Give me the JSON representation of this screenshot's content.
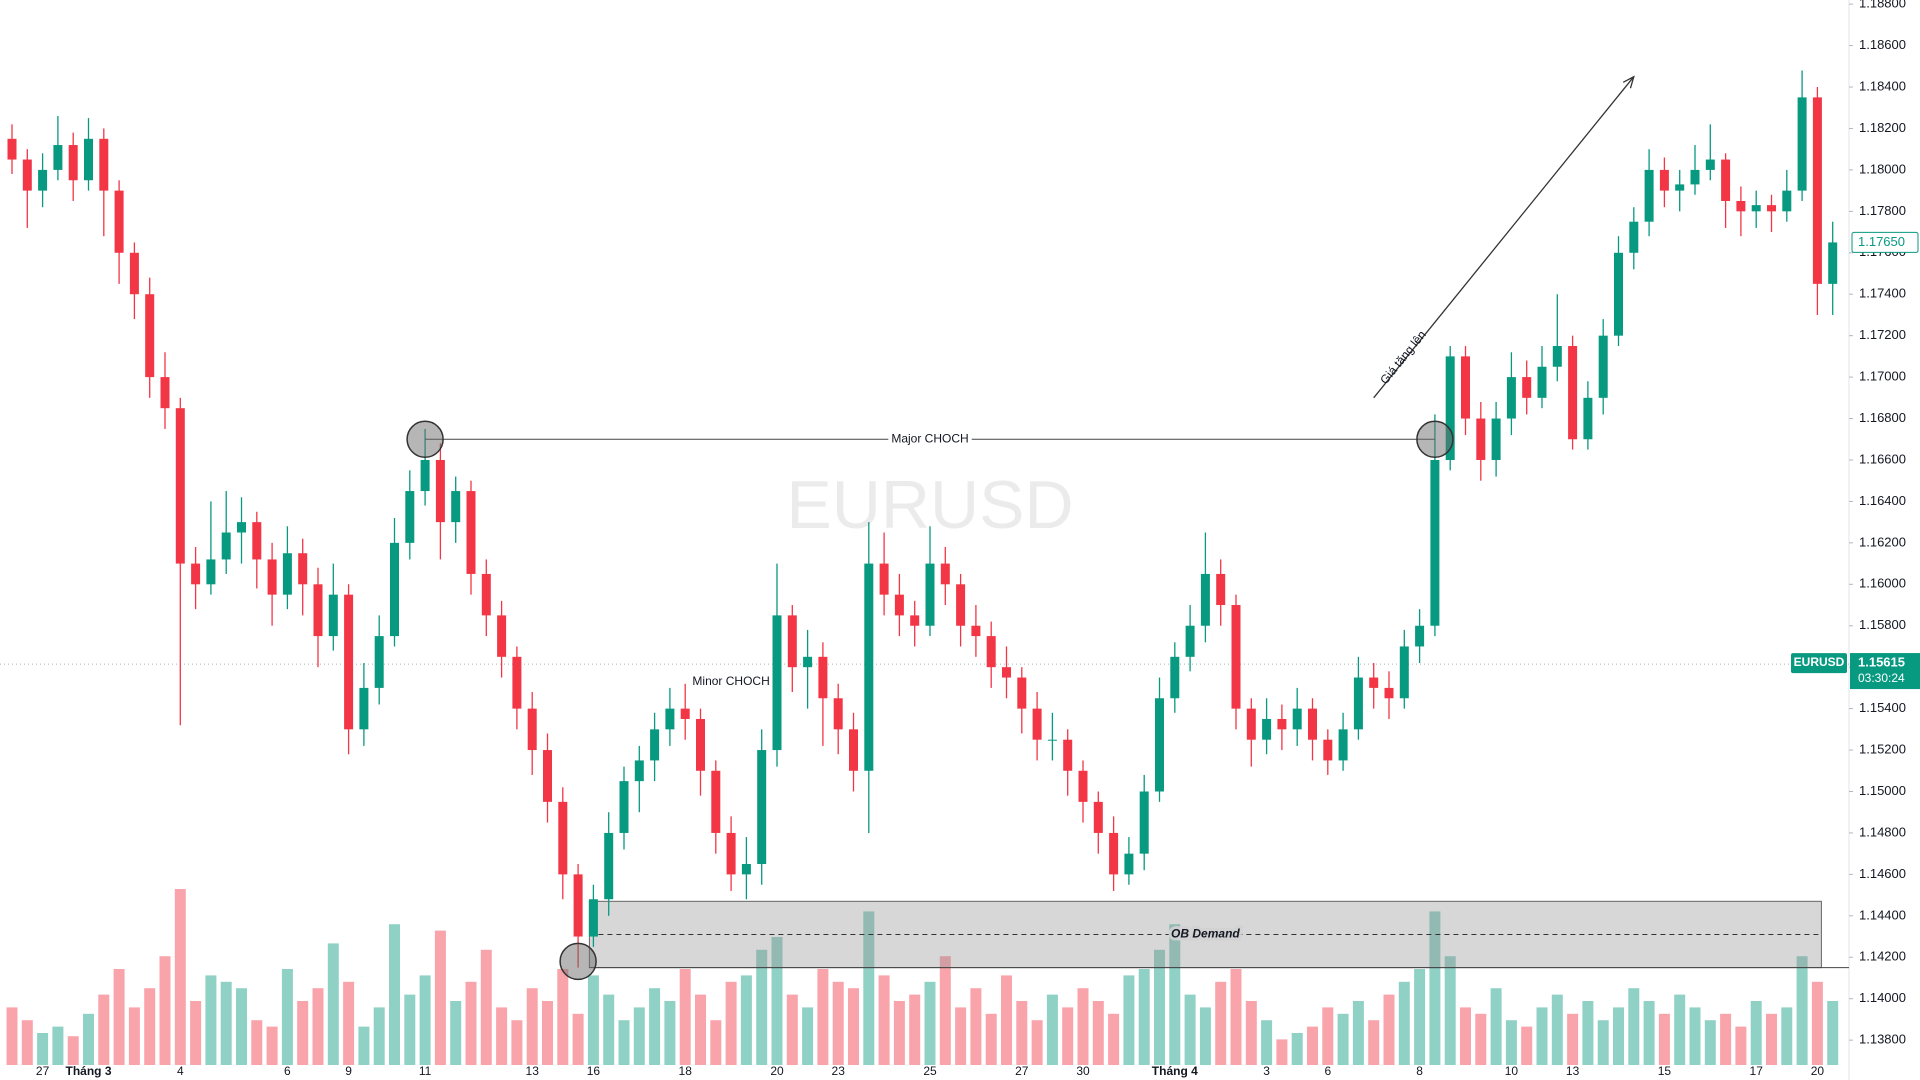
{
  "chart_data": {
    "type": "candlestick",
    "watermark": "EURUSD",
    "up_color": "#089981",
    "down_color": "#f23645",
    "grid": false,
    "ylim": [
      1.1368,
      1.1882
    ],
    "yticks": [
      {
        "value": 1.138,
        "label": "1.13800"
      },
      {
        "value": 1.14,
        "label": "1.14000"
      },
      {
        "value": 1.142,
        "label": "1.14200"
      },
      {
        "value": 1.144,
        "label": "1.14400"
      },
      {
        "value": 1.146,
        "label": "1.14600"
      },
      {
        "value": 1.148,
        "label": "1.14800"
      },
      {
        "value": 1.15,
        "label": "1.15000"
      },
      {
        "value": 1.152,
        "label": "1.15200"
      },
      {
        "value": 1.154,
        "label": "1.15400"
      },
      {
        "value": 1.156,
        "label": "1.15600"
      },
      {
        "value": 1.158,
        "label": "1.15800"
      },
      {
        "value": 1.16,
        "label": "1.16000"
      },
      {
        "value": 1.162,
        "label": "1.16200"
      },
      {
        "value": 1.164,
        "label": "1.16400"
      },
      {
        "value": 1.166,
        "label": "1.16600"
      },
      {
        "value": 1.168,
        "label": "1.16800"
      },
      {
        "value": 1.17,
        "label": "1.17000"
      },
      {
        "value": 1.172,
        "label": "1.17200"
      },
      {
        "value": 1.174,
        "label": "1.17400"
      },
      {
        "value": 1.176,
        "label": "1.17600"
      },
      {
        "value": 1.178,
        "label": "1.17800"
      },
      {
        "value": 1.18,
        "label": "1.18000"
      },
      {
        "value": 1.182,
        "label": "1.18200"
      },
      {
        "value": 1.184,
        "label": "1.18400"
      },
      {
        "value": 1.186,
        "label": "1.18600"
      },
      {
        "value": 1.188,
        "label": "1.18800"
      }
    ],
    "y2lim": [
      0,
      100
    ],
    "categories": [
      null,
      null,
      "27",
      null,
      null,
      "Tháng 3",
      null,
      null,
      null,
      null,
      null,
      "4",
      null,
      null,
      null,
      null,
      null,
      null,
      "6",
      null,
      null,
      null,
      "9",
      null,
      null,
      null,
      null,
      "11",
      null,
      null,
      null,
      null,
      null,
      null,
      "13",
      null,
      null,
      null,
      "16",
      null,
      null,
      null,
      null,
      null,
      "18",
      null,
      null,
      null,
      null,
      null,
      "20",
      null,
      null,
      null,
      "23",
      null,
      null,
      null,
      null,
      null,
      "25",
      null,
      null,
      null,
      null,
      null,
      "27",
      null,
      null,
      null,
      "30",
      null,
      null,
      null,
      null,
      null,
      "Tháng 4",
      null,
      null,
      null,
      null,
      null,
      "3",
      null,
      null,
      null,
      "6",
      null,
      null,
      null,
      null,
      null,
      "8",
      null,
      null,
      null,
      null,
      null,
      "10",
      null,
      null,
      null,
      "13",
      null,
      null,
      null,
      null,
      null,
      "15",
      null,
      null,
      null,
      null,
      null,
      "17",
      null,
      null,
      null,
      "20",
      null
    ],
    "ohlc": [
      [
        1.1815,
        1.1822,
        1.1798,
        1.1805
      ],
      [
        1.1805,
        1.181,
        1.1772,
        1.179
      ],
      [
        1.179,
        1.1808,
        1.1782,
        1.18
      ],
      [
        1.18,
        1.1826,
        1.1795,
        1.1812
      ],
      [
        1.1812,
        1.1818,
        1.1785,
        1.1795
      ],
      [
        1.1795,
        1.1825,
        1.179,
        1.1815
      ],
      [
        1.1815,
        1.182,
        1.1768,
        1.179
      ],
      [
        1.179,
        1.1795,
        1.1745,
        1.176
      ],
      [
        1.176,
        1.1765,
        1.1728,
        1.174
      ],
      [
        1.174,
        1.1748,
        1.169,
        1.17
      ],
      [
        1.17,
        1.1712,
        1.1675,
        1.1685
      ],
      [
        1.1685,
        1.169,
        1.1532,
        1.161
      ],
      [
        1.161,
        1.1618,
        1.1588,
        1.16
      ],
      [
        1.16,
        1.164,
        1.1595,
        1.1612
      ],
      [
        1.1612,
        1.1645,
        1.1605,
        1.1625
      ],
      [
        1.1625,
        1.1642,
        1.161,
        1.163
      ],
      [
        1.163,
        1.1635,
        1.1598,
        1.1612
      ],
      [
        1.1612,
        1.162,
        1.158,
        1.1595
      ],
      [
        1.1595,
        1.1628,
        1.1588,
        1.1615
      ],
      [
        1.1615,
        1.1622,
        1.1585,
        1.16
      ],
      [
        1.16,
        1.1608,
        1.156,
        1.1575
      ],
      [
        1.1575,
        1.161,
        1.1568,
        1.1595
      ],
      [
        1.1595,
        1.16,
        1.1518,
        1.153
      ],
      [
        1.153,
        1.1562,
        1.1522,
        1.155
      ],
      [
        1.155,
        1.1585,
        1.1542,
        1.1575
      ],
      [
        1.1575,
        1.1632,
        1.157,
        1.162
      ],
      [
        1.162,
        1.1655,
        1.1612,
        1.1645
      ],
      [
        1.1645,
        1.1675,
        1.1638,
        1.166
      ],
      [
        1.166,
        1.1668,
        1.1612,
        1.163
      ],
      [
        1.163,
        1.1652,
        1.162,
        1.1645
      ],
      [
        1.1645,
        1.165,
        1.1595,
        1.1605
      ],
      [
        1.1605,
        1.1612,
        1.1575,
        1.1585
      ],
      [
        1.1585,
        1.1592,
        1.1555,
        1.1565
      ],
      [
        1.1565,
        1.157,
        1.153,
        1.154
      ],
      [
        1.154,
        1.1548,
        1.1508,
        1.152
      ],
      [
        1.152,
        1.1528,
        1.1485,
        1.1495
      ],
      [
        1.1495,
        1.1502,
        1.1448,
        1.146
      ],
      [
        1.146,
        1.1465,
        1.1415,
        1.143
      ],
      [
        1.143,
        1.1455,
        1.1425,
        1.1448
      ],
      [
        1.1448,
        1.149,
        1.144,
        1.148
      ],
      [
        1.148,
        1.1512,
        1.1472,
        1.1505
      ],
      [
        1.1505,
        1.1522,
        1.149,
        1.1515
      ],
      [
        1.1515,
        1.1538,
        1.1505,
        1.153
      ],
      [
        1.153,
        1.155,
        1.1522,
        1.154
      ],
      [
        1.154,
        1.1552,
        1.1525,
        1.1535
      ],
      [
        1.1535,
        1.154,
        1.1498,
        1.151
      ],
      [
        1.151,
        1.1515,
        1.147,
        1.148
      ],
      [
        1.148,
        1.1488,
        1.1452,
        1.146
      ],
      [
        1.146,
        1.1478,
        1.1448,
        1.1465
      ],
      [
        1.1465,
        1.153,
        1.1455,
        1.152
      ],
      [
        1.152,
        1.161,
        1.1512,
        1.1585
      ],
      [
        1.1585,
        1.159,
        1.1548,
        1.156
      ],
      [
        1.156,
        1.1578,
        1.154,
        1.1565
      ],
      [
        1.1565,
        1.1572,
        1.1522,
        1.1545
      ],
      [
        1.1545,
        1.1552,
        1.1518,
        1.153
      ],
      [
        1.153,
        1.1538,
        1.15,
        1.151
      ],
      [
        1.151,
        1.163,
        1.148,
        1.161
      ],
      [
        1.161,
        1.1625,
        1.1585,
        1.1595
      ],
      [
        1.1595,
        1.1605,
        1.1575,
        1.1585
      ],
      [
        1.1585,
        1.1592,
        1.157,
        1.158
      ],
      [
        1.158,
        1.1628,
        1.1575,
        1.161
      ],
      [
        1.161,
        1.1618,
        1.159,
        1.16
      ],
      [
        1.16,
        1.1605,
        1.157,
        1.158
      ],
      [
        1.158,
        1.159,
        1.1565,
        1.1575
      ],
      [
        1.1575,
        1.1582,
        1.155,
        1.156
      ],
      [
        1.156,
        1.157,
        1.1545,
        1.1555
      ],
      [
        1.1555,
        1.156,
        1.1528,
        1.154
      ],
      [
        1.154,
        1.1548,
        1.1515,
        1.1525
      ],
      [
        1.1525,
        1.1538,
        1.1515,
        1.1525
      ],
      [
        1.1525,
        1.153,
        1.1498,
        1.151
      ],
      [
        1.151,
        1.1515,
        1.1485,
        1.1495
      ],
      [
        1.1495,
        1.15,
        1.147,
        1.148
      ],
      [
        1.148,
        1.1488,
        1.1452,
        1.146
      ],
      [
        1.146,
        1.1478,
        1.1455,
        1.147
      ],
      [
        1.147,
        1.1508,
        1.1462,
        1.15
      ],
      [
        1.15,
        1.1555,
        1.1495,
        1.1545
      ],
      [
        1.1545,
        1.1572,
        1.1538,
        1.1565
      ],
      [
        1.1565,
        1.159,
        1.1558,
        1.158
      ],
      [
        1.158,
        1.1625,
        1.1572,
        1.1605
      ],
      [
        1.1605,
        1.1612,
        1.158,
        1.159
      ],
      [
        1.159,
        1.1595,
        1.153,
        1.154
      ],
      [
        1.154,
        1.1545,
        1.1512,
        1.1525
      ],
      [
        1.1525,
        1.1545,
        1.1518,
        1.1535
      ],
      [
        1.1535,
        1.1542,
        1.152,
        1.153
      ],
      [
        1.153,
        1.155,
        1.1522,
        1.154
      ],
      [
        1.154,
        1.1545,
        1.1515,
        1.1525
      ],
      [
        1.1525,
        1.153,
        1.1508,
        1.1515
      ],
      [
        1.1515,
        1.1538,
        1.151,
        1.153
      ],
      [
        1.153,
        1.1565,
        1.1525,
        1.1555
      ],
      [
        1.1555,
        1.1562,
        1.154,
        1.155
      ],
      [
        1.155,
        1.1558,
        1.1535,
        1.1545
      ],
      [
        1.1545,
        1.1578,
        1.154,
        1.157
      ],
      [
        1.157,
        1.1588,
        1.1562,
        1.158
      ],
      [
        1.158,
        1.1682,
        1.1575,
        1.166
      ],
      [
        1.166,
        1.1715,
        1.1655,
        1.171
      ],
      [
        1.171,
        1.1715,
        1.1672,
        1.168
      ],
      [
        1.168,
        1.1688,
        1.165,
        1.166
      ],
      [
        1.166,
        1.1688,
        1.1652,
        1.168
      ],
      [
        1.168,
        1.1712,
        1.1672,
        1.17
      ],
      [
        1.17,
        1.1708,
        1.1682,
        1.169
      ],
      [
        1.169,
        1.1715,
        1.1685,
        1.1705
      ],
      [
        1.1705,
        1.174,
        1.1698,
        1.1715
      ],
      [
        1.1715,
        1.172,
        1.1665,
        1.167
      ],
      [
        1.167,
        1.1698,
        1.1665,
        1.169
      ],
      [
        1.169,
        1.1728,
        1.1682,
        1.172
      ],
      [
        1.172,
        1.1768,
        1.1715,
        1.176
      ],
      [
        1.176,
        1.1782,
        1.1752,
        1.1775
      ],
      [
        1.1775,
        1.181,
        1.1768,
        1.18
      ],
      [
        1.18,
        1.1806,
        1.1782,
        1.179
      ],
      [
        1.179,
        1.18,
        1.178,
        1.1793
      ],
      [
        1.1793,
        1.1812,
        1.1788,
        1.18
      ],
      [
        1.18,
        1.1822,
        1.1795,
        1.1805
      ],
      [
        1.1805,
        1.1808,
        1.1772,
        1.1785
      ],
      [
        1.1785,
        1.1792,
        1.1768,
        1.178
      ],
      [
        1.178,
        1.179,
        1.1772,
        1.1783
      ],
      [
        1.1783,
        1.1788,
        1.177,
        1.178
      ],
      [
        1.178,
        1.18,
        1.1775,
        1.179
      ],
      [
        1.179,
        1.1848,
        1.1785,
        1.1835
      ],
      [
        1.1835,
        1.184,
        1.173,
        1.1745
      ],
      [
        1.1745,
        1.1775,
        1.173,
        1.1765
      ]
    ],
    "volume": [
      18,
      14,
      10,
      12,
      9,
      16,
      22,
      30,
      18,
      24,
      34,
      55,
      20,
      28,
      26,
      24,
      14,
      12,
      30,
      20,
      24,
      38,
      26,
      12,
      18,
      44,
      22,
      28,
      42,
      20,
      26,
      36,
      18,
      14,
      24,
      20,
      30,
      16,
      28,
      22,
      14,
      18,
      24,
      20,
      30,
      22,
      14,
      26,
      28,
      36,
      40,
      22,
      18,
      30,
      26,
      24,
      48,
      28,
      20,
      22,
      26,
      34,
      18,
      24,
      16,
      28,
      20,
      14,
      22,
      18,
      24,
      20,
      16,
      28,
      30,
      36,
      44,
      22,
      18,
      26,
      30,
      20,
      14,
      8,
      10,
      12,
      18,
      16,
      20,
      14,
      22,
      26,
      30,
      48,
      34,
      18,
      16,
      24,
      14,
      12,
      18,
      22,
      16,
      20,
      14,
      18,
      24,
      20,
      16,
      22,
      18,
      14,
      16,
      12,
      20,
      16,
      18,
      34,
      26,
      20
    ],
    "last_price": {
      "value": 1.1765,
      "label": "1.17650"
    },
    "current_price": {
      "symbol": "EURUSD",
      "value": 1.15615,
      "countdown": "03:30:24"
    },
    "annotations": {
      "major_choch": {
        "label": "Major CHOCH",
        "price": 1.167,
        "from": 27,
        "to": 93
      },
      "minor_choch": {
        "label": "Minor CHOCH",
        "price": 1.1553,
        "at": 47
      },
      "ob_demand": {
        "label": "OB Demand",
        "low": 1.1415,
        "high": 1.1447,
        "mid": 1.1431,
        "from": 38,
        "to": 118
      },
      "low_marker": {
        "price": 1.1418,
        "at": 37
      },
      "trend_arrow": {
        "label": "Giá tăng lên",
        "from": [
          89,
          1.169
        ],
        "to": [
          106,
          1.1845
        ]
      }
    }
  }
}
